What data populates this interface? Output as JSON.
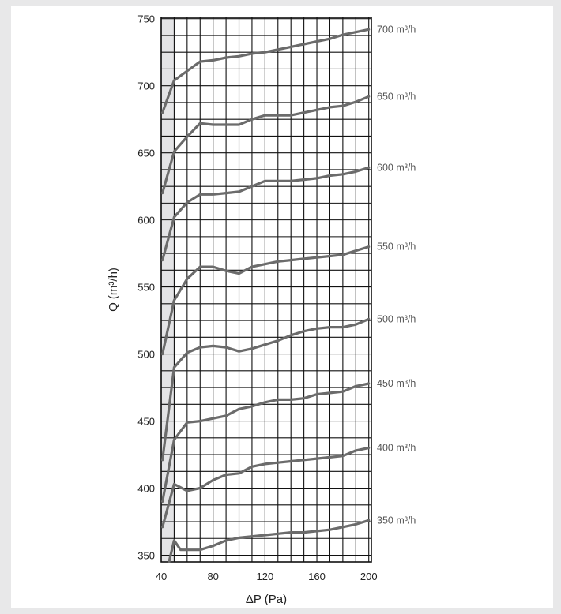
{
  "chart_data": {
    "type": "line",
    "title": "",
    "xlabel": "ΔP (Pa)",
    "ylabel": "Q (m³/h)",
    "xlim": [
      40,
      202
    ],
    "ylim": [
      345,
      751
    ],
    "x_ticks": [
      "40",
      "80",
      "120",
      "160",
      "200"
    ],
    "y_ticks": [
      "350",
      "400",
      "450",
      "500",
      "550",
      "600",
      "650",
      "700",
      "750"
    ],
    "grid": true,
    "shaded_region": [
      40,
      50
    ],
    "colors": {
      "line": "#6b6b6b",
      "grid": "#111111",
      "shade": "#e4e4e6"
    },
    "series": [
      {
        "name": "350 m³/h",
        "label": "350 m³/h",
        "x": [
          46,
          50,
          55,
          60,
          70,
          80,
          90,
          100,
          110,
          120,
          130,
          140,
          150,
          160,
          170,
          180,
          190,
          200
        ],
        "y": [
          345,
          361,
          354,
          354,
          354,
          357,
          361,
          363,
          364,
          365,
          366,
          367,
          367,
          368,
          369,
          371,
          373,
          376
        ]
      },
      {
        "name": "400 m³/h",
        "label": "400 m³/h",
        "x": [
          41,
          50,
          60,
          70,
          80,
          90,
          100,
          110,
          120,
          130,
          140,
          150,
          160,
          170,
          180,
          190,
          200
        ],
        "y": [
          371,
          403,
          398,
          400,
          406,
          410,
          411,
          416,
          418,
          419,
          420,
          421,
          422,
          423,
          424,
          428,
          430
        ]
      },
      {
        "name": "450 m³/h",
        "label": "450 m³/h",
        "x": [
          41,
          50,
          60,
          70,
          80,
          90,
          100,
          110,
          120,
          130,
          140,
          150,
          160,
          170,
          180,
          190,
          200
        ],
        "y": [
          390,
          436,
          449,
          450,
          452,
          454,
          459,
          461,
          464,
          466,
          466,
          467,
          470,
          471,
          472,
          476,
          478
        ]
      },
      {
        "name": "500 m³/h",
        "label": "500 m³/h",
        "x": [
          41,
          50,
          60,
          70,
          80,
          90,
          100,
          110,
          120,
          130,
          140,
          150,
          160,
          170,
          180,
          190,
          200
        ],
        "y": [
          421,
          490,
          501,
          505,
          506,
          505,
          502,
          504,
          507,
          510,
          514,
          517,
          519,
          520,
          520,
          522,
          526
        ]
      },
      {
        "name": "550 m³/h",
        "label": "550 m³/h",
        "x": [
          41,
          50,
          60,
          70,
          80,
          90,
          100,
          110,
          120,
          130,
          140,
          150,
          160,
          170,
          180,
          190,
          200
        ],
        "y": [
          500,
          540,
          556,
          565,
          565,
          562,
          560,
          565,
          567,
          569,
          570,
          571,
          572,
          573,
          574,
          577,
          580
        ]
      },
      {
        "name": "600 m³/h",
        "label": "600 m³/h",
        "x": [
          41,
          50,
          60,
          70,
          80,
          90,
          100,
          110,
          120,
          130,
          140,
          150,
          160,
          170,
          180,
          190,
          200
        ],
        "y": [
          570,
          602,
          613,
          619,
          619,
          620,
          621,
          625,
          629,
          629,
          629,
          630,
          631,
          633,
          634,
          636,
          639
        ]
      },
      {
        "name": "650 m³/h",
        "label": "650 m³/h",
        "x": [
          41,
          50,
          60,
          70,
          80,
          90,
          100,
          110,
          120,
          130,
          140,
          150,
          160,
          170,
          180,
          190,
          200
        ],
        "y": [
          620,
          651,
          662,
          672,
          671,
          671,
          671,
          675,
          678,
          678,
          678,
          680,
          682,
          684,
          685,
          688,
          692
        ]
      },
      {
        "name": "700 m³/h",
        "label": "700 m³/h",
        "x": [
          41,
          50,
          60,
          70,
          80,
          90,
          100,
          110,
          120,
          130,
          140,
          150,
          160,
          170,
          180,
          190,
          200
        ],
        "y": [
          680,
          704,
          711,
          718,
          719,
          721,
          722,
          724,
          725,
          727,
          729,
          731,
          733,
          735,
          738,
          740,
          742
        ]
      }
    ]
  }
}
